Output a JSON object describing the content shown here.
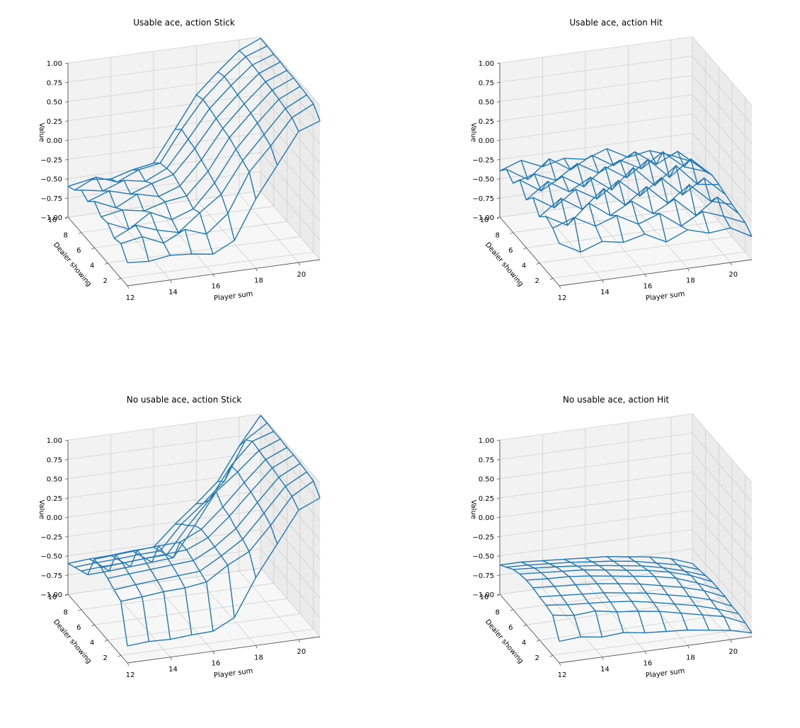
{
  "chart_data": [
    {
      "type": "wireframe-3d",
      "title": "Usable ace, action Stick",
      "xlabel": "Player sum",
      "ylabel": "Dealer showing",
      "zlabel": "Value",
      "x": [
        12,
        13,
        14,
        15,
        16,
        17,
        18,
        19,
        20,
        21
      ],
      "y": [
        1,
        2,
        3,
        4,
        5,
        6,
        7,
        8,
        9,
        10
      ],
      "xticks": [
        12,
        14,
        16,
        18,
        20
      ],
      "yticks": [
        2,
        4,
        6,
        8,
        10
      ],
      "zticks": [
        "1.00",
        "0.75",
        "0.50",
        "0.25",
        "0.00",
        "−0.25",
        "−0.50",
        "−0.75",
        "−1.00"
      ],
      "zlim": [
        -1,
        1
      ],
      "color": "#1f77b4",
      "z": [
        [
          -0.7,
          -0.72,
          -0.68,
          -0.7,
          -0.74,
          -0.6,
          -0.1,
          0.3,
          0.7,
          0.8
        ],
        [
          -0.55,
          -0.5,
          -0.62,
          -0.48,
          -0.58,
          -0.35,
          0.15,
          0.45,
          0.78,
          0.92
        ],
        [
          -0.58,
          -0.45,
          -0.55,
          -0.62,
          -0.4,
          -0.2,
          0.2,
          0.5,
          0.8,
          0.94
        ],
        [
          -0.48,
          -0.6,
          -0.42,
          -0.55,
          -0.45,
          -0.15,
          0.25,
          0.55,
          0.82,
          0.95
        ],
        [
          -0.5,
          -0.45,
          -0.5,
          -0.42,
          -0.38,
          -0.1,
          0.3,
          0.58,
          0.84,
          0.96
        ],
        [
          -0.4,
          -0.52,
          -0.38,
          -0.45,
          -0.35,
          -0.05,
          0.32,
          0.6,
          0.85,
          0.96
        ],
        [
          -0.5,
          -0.4,
          -0.48,
          -0.38,
          -0.3,
          0.0,
          0.35,
          0.62,
          0.86,
          0.97
        ],
        [
          -0.45,
          -0.5,
          -0.4,
          -0.45,
          -0.32,
          0.02,
          0.38,
          0.64,
          0.87,
          0.97
        ],
        [
          -0.55,
          -0.42,
          -0.52,
          -0.4,
          -0.35,
          0.05,
          0.4,
          0.66,
          0.88,
          0.98
        ],
        [
          -0.6,
          -0.55,
          -0.58,
          -0.5,
          -0.45,
          -0.05,
          0.36,
          0.62,
          0.86,
          0.98
        ]
      ]
    },
    {
      "type": "wireframe-3d",
      "title": "Usable ace, action Hit",
      "xlabel": "Player sum",
      "ylabel": "Dealer showing",
      "zlabel": "Value",
      "x": [
        12,
        13,
        14,
        15,
        16,
        17,
        18,
        19,
        20,
        21
      ],
      "y": [
        1,
        2,
        3,
        4,
        5,
        6,
        7,
        8,
        9,
        10
      ],
      "xticks": [
        12,
        14,
        16,
        18,
        20
      ],
      "yticks": [
        2,
        4,
        6,
        8,
        10
      ],
      "zticks": [
        "1.00",
        "0.75",
        "0.50",
        "0.25",
        "0.00",
        "−0.25",
        "−0.50",
        "−0.75",
        "−1.00"
      ],
      "zlim": [
        -1,
        1
      ],
      "color": "#1f77b4",
      "z": [
        [
          -0.45,
          -0.6,
          -0.5,
          -0.55,
          -0.48,
          -0.62,
          -0.5,
          -0.58,
          -0.55,
          -0.7
        ],
        [
          -0.35,
          -0.25,
          -0.4,
          -0.3,
          -0.45,
          -0.35,
          -0.55,
          -0.4,
          -0.5,
          -0.62
        ],
        [
          -0.3,
          -0.45,
          -0.2,
          -0.4,
          -0.25,
          -0.45,
          -0.3,
          -0.55,
          -0.35,
          -0.6
        ],
        [
          -0.4,
          -0.2,
          -0.38,
          -0.15,
          -0.4,
          -0.2,
          -0.45,
          -0.25,
          -0.5,
          -0.58
        ],
        [
          -0.25,
          -0.42,
          -0.22,
          -0.38,
          -0.18,
          -0.42,
          -0.22,
          -0.48,
          -0.3,
          -0.55
        ],
        [
          -0.38,
          -0.18,
          -0.35,
          -0.2,
          -0.4,
          -0.15,
          -0.42,
          -0.2,
          -0.48,
          -0.52
        ],
        [
          -0.22,
          -0.4,
          -0.25,
          -0.42,
          -0.2,
          -0.38,
          -0.18,
          -0.45,
          -0.25,
          -0.5
        ],
        [
          -0.36,
          -0.28,
          -0.4,
          -0.22,
          -0.38,
          -0.25,
          -0.4,
          -0.22,
          -0.45,
          -0.55
        ],
        [
          -0.28,
          -0.45,
          -0.22,
          -0.4,
          -0.25,
          -0.42,
          -0.28,
          -0.48,
          -0.35,
          -0.58
        ],
        [
          -0.4,
          -0.3,
          -0.42,
          -0.35,
          -0.4,
          -0.3,
          -0.45,
          -0.4,
          -0.5,
          -0.62
        ]
      ]
    },
    {
      "type": "wireframe-3d",
      "title": "No usable ace, action Stick",
      "xlabel": "Player sum",
      "ylabel": "Dealer showing",
      "zlabel": "Value",
      "x": [
        12,
        13,
        14,
        15,
        16,
        17,
        18,
        19,
        20,
        21
      ],
      "y": [
        1,
        2,
        3,
        4,
        5,
        6,
        7,
        8,
        9,
        10
      ],
      "xticks": [
        12,
        14,
        16,
        18,
        20
      ],
      "yticks": [
        2,
        4,
        6,
        8,
        10
      ],
      "zticks": [
        "1.00",
        "0.75",
        "0.50",
        "0.25",
        "0.00",
        "−0.25",
        "−0.50",
        "−0.75",
        "−1.00"
      ],
      "zlim": [
        -1,
        1
      ],
      "color": "#1f77b4",
      "z": [
        [
          -0.78,
          -0.76,
          -0.77,
          -0.75,
          -0.74,
          -0.6,
          -0.12,
          0.28,
          0.68,
          0.8
        ],
        [
          -0.3,
          -0.28,
          -0.25,
          -0.24,
          -0.2,
          -0.02,
          0.12,
          0.42,
          0.76,
          0.92
        ],
        [
          -0.25,
          -0.22,
          -0.2,
          -0.18,
          -0.16,
          0.0,
          0.18,
          0.48,
          0.79,
          0.94
        ],
        [
          -0.2,
          -0.18,
          -0.16,
          -0.14,
          -0.12,
          0.02,
          0.22,
          0.52,
          0.81,
          0.95
        ],
        [
          -0.16,
          -0.14,
          -0.12,
          -0.1,
          -0.08,
          0.04,
          0.28,
          0.56,
          0.83,
          0.96
        ],
        [
          -0.15,
          -0.13,
          -0.11,
          -0.09,
          -0.08,
          0.05,
          0.3,
          0.58,
          0.84,
          0.96
        ],
        [
          -0.45,
          -0.44,
          -0.42,
          -0.4,
          -0.38,
          0.0,
          0.4,
          0.62,
          0.86,
          0.97
        ],
        [
          -0.5,
          -0.48,
          -0.47,
          -0.45,
          -0.44,
          -0.1,
          0.2,
          0.6,
          0.88,
          0.97
        ],
        [
          -0.55,
          -0.53,
          -0.52,
          -0.5,
          -0.49,
          -0.18,
          0.05,
          0.3,
          0.8,
          0.98
        ],
        [
          -0.6,
          -0.58,
          -0.57,
          -0.55,
          -0.54,
          -0.28,
          -0.05,
          0.2,
          0.62,
          0.98
        ]
      ]
    },
    {
      "type": "wireframe-3d",
      "title": "No usable ace, action Hit",
      "xlabel": "Player sum",
      "ylabel": "Dealer showing",
      "zlabel": "Value",
      "x": [
        12,
        13,
        14,
        15,
        16,
        17,
        18,
        19,
        20,
        21
      ],
      "y": [
        1,
        2,
        3,
        4,
        5,
        6,
        7,
        8,
        9,
        10
      ],
      "xticks": [
        12,
        14,
        16,
        18,
        20
      ],
      "yticks": [
        2,
        4,
        6,
        8,
        10
      ],
      "zticks": [
        "1.00",
        "0.75",
        "0.50",
        "0.25",
        "0.00",
        "−0.25",
        "−0.50",
        "−0.75",
        "−1.00"
      ],
      "zlim": [
        -1,
        1
      ],
      "color": "#1f77b4",
      "z": [
        [
          -0.72,
          -0.7,
          -0.74,
          -0.72,
          -0.76,
          -0.78,
          -0.8,
          -0.84,
          -0.88,
          -0.95
        ],
        [
          -0.48,
          -0.52,
          -0.5,
          -0.55,
          -0.58,
          -0.62,
          -0.68,
          -0.74,
          -0.8,
          -0.92
        ],
        [
          -0.45,
          -0.48,
          -0.5,
          -0.52,
          -0.55,
          -0.6,
          -0.66,
          -0.72,
          -0.8,
          -0.9
        ],
        [
          -0.44,
          -0.46,
          -0.48,
          -0.5,
          -0.54,
          -0.58,
          -0.64,
          -0.7,
          -0.78,
          -0.9
        ],
        [
          -0.42,
          -0.44,
          -0.46,
          -0.48,
          -0.52,
          -0.56,
          -0.62,
          -0.68,
          -0.76,
          -0.88
        ],
        [
          -0.42,
          -0.44,
          -0.45,
          -0.48,
          -0.52,
          -0.56,
          -0.6,
          -0.66,
          -0.76,
          -0.88
        ],
        [
          -0.44,
          -0.46,
          -0.48,
          -0.5,
          -0.54,
          -0.58,
          -0.62,
          -0.68,
          -0.76,
          -0.88
        ],
        [
          -0.48,
          -0.5,
          -0.52,
          -0.55,
          -0.58,
          -0.62,
          -0.66,
          -0.72,
          -0.8,
          -0.9
        ],
        [
          -0.55,
          -0.56,
          -0.58,
          -0.6,
          -0.63,
          -0.66,
          -0.7,
          -0.76,
          -0.82,
          -0.92
        ],
        [
          -0.62,
          -0.62,
          -0.64,
          -0.66,
          -0.68,
          -0.7,
          -0.74,
          -0.78,
          -0.84,
          -0.94
        ]
      ]
    }
  ]
}
